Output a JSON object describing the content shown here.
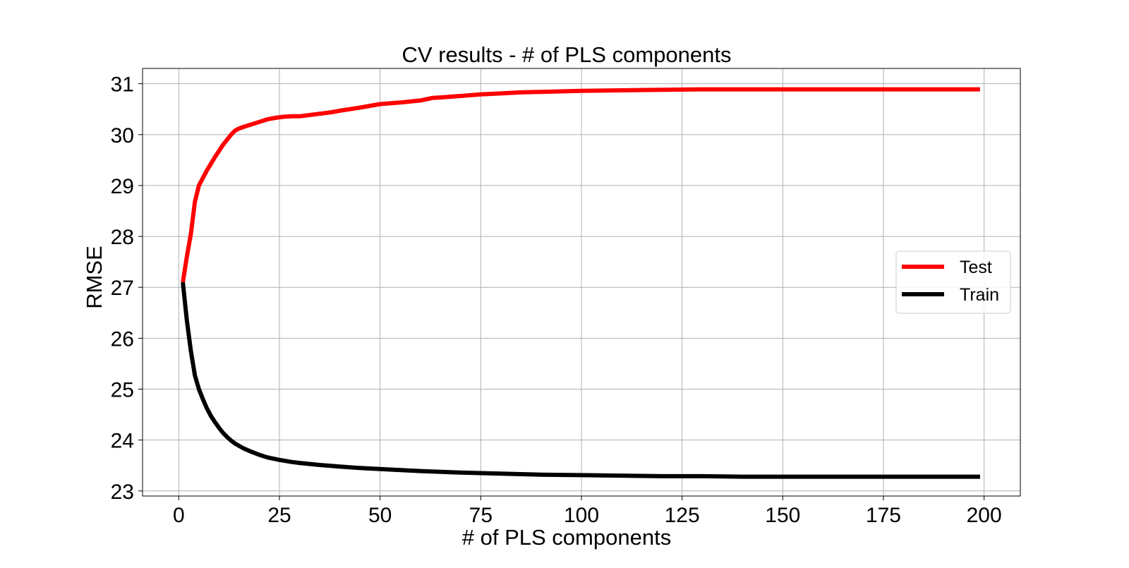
{
  "chart_data": {
    "type": "line",
    "title": "CV results - # of PLS components",
    "xlabel": "# of PLS components",
    "ylabel": "RMSE",
    "xlim": [
      -9,
      209
    ],
    "ylim": [
      22.9,
      31.3
    ],
    "xticks": [
      0,
      25,
      50,
      75,
      100,
      125,
      150,
      175,
      200
    ],
    "yticks": [
      23,
      24,
      25,
      26,
      27,
      28,
      29,
      30,
      31
    ],
    "grid": true,
    "legend_position": "center-right",
    "series": [
      {
        "name": "Test",
        "color": "#ff0000",
        "x": [
          1,
          2,
          3,
          4,
          5,
          6,
          7,
          8,
          9,
          10,
          11,
          12,
          13,
          14,
          15,
          16,
          18,
          20,
          22,
          24,
          26,
          28,
          30,
          32,
          35,
          38,
          40,
          45,
          50,
          55,
          60,
          63,
          65,
          70,
          75,
          80,
          85,
          90,
          100,
          110,
          120,
          130,
          140,
          150,
          160,
          170,
          180,
          190,
          199
        ],
        "y": [
          27.1,
          27.6,
          28.05,
          28.68,
          29.0,
          29.15,
          29.3,
          29.43,
          29.56,
          29.68,
          29.8,
          29.9,
          30.0,
          30.08,
          30.12,
          30.15,
          30.2,
          30.25,
          30.3,
          30.33,
          30.35,
          30.36,
          30.36,
          30.38,
          30.41,
          30.44,
          30.47,
          30.53,
          30.6,
          30.63,
          30.67,
          30.72,
          30.73,
          30.76,
          30.79,
          30.81,
          30.83,
          30.84,
          30.86,
          30.87,
          30.88,
          30.89,
          30.89,
          30.89,
          30.89,
          30.89,
          30.89,
          30.89,
          30.89
        ]
      },
      {
        "name": "Train",
        "color": "#000000",
        "x": [
          1,
          2,
          3,
          4,
          5,
          6,
          7,
          8,
          9,
          10,
          11,
          12,
          13,
          14,
          16,
          18,
          20,
          22,
          25,
          28,
          30,
          35,
          40,
          45,
          50,
          60,
          70,
          80,
          90,
          100,
          110,
          120,
          130,
          140,
          150,
          160,
          170,
          180,
          190,
          199
        ],
        "y": [
          27.1,
          26.35,
          25.75,
          25.27,
          25.0,
          24.8,
          24.62,
          24.47,
          24.35,
          24.24,
          24.14,
          24.06,
          23.99,
          23.93,
          23.84,
          23.77,
          23.71,
          23.66,
          23.61,
          23.57,
          23.55,
          23.51,
          23.48,
          23.45,
          23.43,
          23.39,
          23.36,
          23.34,
          23.32,
          23.31,
          23.3,
          23.29,
          23.29,
          23.28,
          23.28,
          23.28,
          23.28,
          23.28,
          23.28,
          23.28
        ]
      }
    ]
  }
}
